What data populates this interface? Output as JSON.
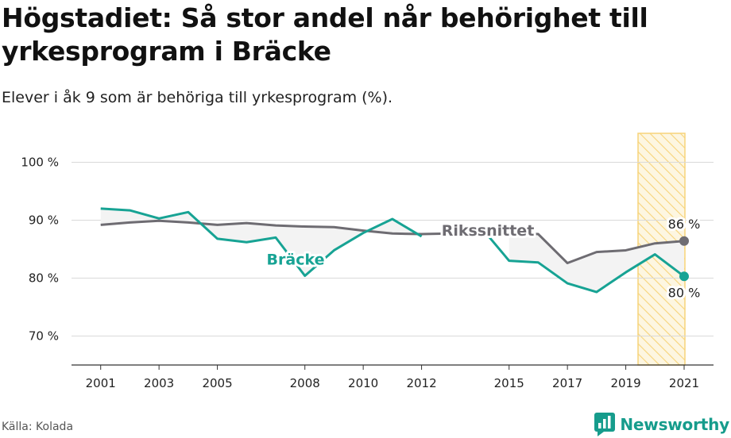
{
  "header": {
    "title": "Högstadiet: Så stor andel når behörighet till yrkesprogram i Bräcke",
    "subtitle": "Elever i åk 9 som är behöriga till yrkesprogram (%)."
  },
  "footer": {
    "source": "Källa: Kolada",
    "brand": "Newsworthy"
  },
  "colors": {
    "bracke": "#17a394",
    "riket": "#6e6c72",
    "band": "#f7d47a",
    "grid": "#d9d9d9",
    "fill": "#f3f3f3"
  },
  "chart_data": {
    "type": "line",
    "x": [
      2001,
      2002,
      2003,
      2004,
      2005,
      2006,
      2007,
      2008,
      2009,
      2010,
      2011,
      2012,
      2013,
      2014,
      2015,
      2016,
      2017,
      2018,
      2019,
      2020,
      2021
    ],
    "series": [
      {
        "name": "Bräcke",
        "values": [
          92.0,
          91.7,
          90.3,
          91.4,
          86.8,
          86.2,
          87.0,
          80.4,
          84.8,
          87.8,
          90.2,
          87.2,
          null,
          89.0,
          83.0,
          82.7,
          79.1,
          77.6,
          81.0,
          84.1,
          80.3
        ]
      },
      {
        "name": "Rikssnittet",
        "values": [
          89.2,
          89.6,
          89.9,
          89.6,
          89.2,
          89.5,
          89.1,
          88.9,
          88.8,
          88.2,
          87.7,
          87.6,
          87.7,
          null,
          87.8,
          87.6,
          82.6,
          84.5,
          84.8,
          86.0,
          86.4
        ]
      }
    ],
    "ylim": [
      65,
      105
    ],
    "yticks": [
      70,
      80,
      90,
      100
    ],
    "ytick_labels": [
      "70 %",
      "80 %",
      "90 %",
      "100 %"
    ],
    "xticks": [
      2001,
      2003,
      2005,
      2008,
      2010,
      2012,
      2015,
      2017,
      2019,
      2021
    ],
    "xtick_labels": [
      "2001",
      "2003",
      "2005",
      "2008",
      "2010",
      "2012",
      "2015",
      "2017",
      "2019",
      "2021"
    ],
    "highlight_years": [
      2020,
      2021
    ],
    "end_labels": {
      "riket": "86 %",
      "bracke": "80 %"
    },
    "series_labels": {
      "bracke": "Bräcke",
      "riket": "Rikssnittet"
    },
    "grid": true
  }
}
